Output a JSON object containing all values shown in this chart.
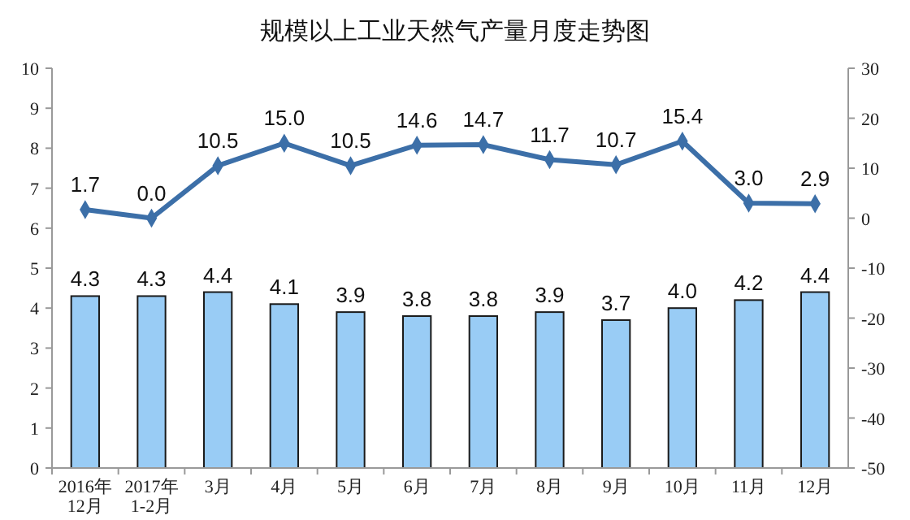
{
  "chart_data": {
    "type": "bar",
    "title": "规模以上工业天然气产量月度走势图",
    "categories": [
      "2016年\n12月",
      "2017年\n1-2月",
      "3月",
      "4月",
      "5月",
      "6月",
      "7月",
      "8月",
      "9月",
      "10月",
      "11月",
      "12月"
    ],
    "series": [
      {
        "color": "#99ccf5",
        "values": [
          4.3,
          4.3,
          4.4,
          4.1,
          3.9,
          3.8,
          3.8,
          3.9,
          3.7,
          4.0,
          4.2,
          4.4
        ],
        "value_labels": [
          "4.3",
          "4.3",
          "4.4",
          "4.1",
          "3.9",
          "3.8",
          "3.8",
          "3.9",
          "3.7",
          "4.0",
          "4.2",
          "4.4"
        ]
      },
      {
        "type": "line",
        "axis": "y2",
        "color": "#3c6fa8",
        "marker": "diamond",
        "values": [
          1.7,
          0.0,
          10.5,
          15.0,
          10.5,
          14.6,
          14.7,
          11.7,
          10.7,
          15.4,
          3.0,
          2.9
        ],
        "value_labels": [
          "1.7",
          "0.0",
          "10.5",
          "15.0",
          "10.5",
          "14.6",
          "14.7",
          "11.7",
          "10.7",
          "15.4",
          "3.0",
          "2.9"
        ]
      }
    ],
    "ylim": [
      0,
      10
    ],
    "yticks": [
      0,
      1,
      2,
      3,
      4,
      5,
      6,
      7,
      8,
      9,
      10
    ],
    "y2lim": [
      -50,
      30
    ],
    "y2ticks": [
      -50,
      -40,
      -30,
      -20,
      -10,
      0,
      10,
      20,
      30
    ],
    "grid": false
  }
}
